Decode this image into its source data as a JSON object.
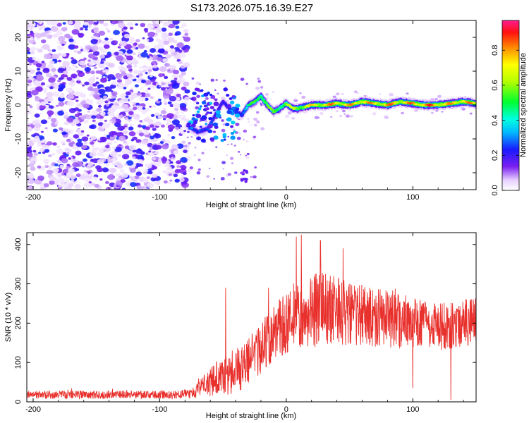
{
  "title": "S173.2026.075.16.39.E27",
  "chart_data": [
    {
      "type": "heatmap",
      "name": "spectrogram",
      "xlabel": "Height of straight line (km)",
      "ylabel": "Frequency (Hz)",
      "xlim": [
        -205,
        150
      ],
      "ylim": [
        -25,
        25
      ],
      "xticks": [
        -200,
        -100,
        0,
        100
      ],
      "yticks": [
        -20,
        -10,
        0,
        10,
        20
      ],
      "colorbar": {
        "label": "Normalized spectral amplitude",
        "range": [
          0,
          0.97
        ],
        "ticks": [
          "0.0",
          "0.2",
          "0.4",
          "0.6",
          "0.8"
        ],
        "tick_values": [
          0.0,
          0.2,
          0.4,
          0.6,
          0.8
        ]
      },
      "noise_region_x": [
        -205,
        -78
      ],
      "ridge": {
        "x": [
          -78,
          -70,
          -62,
          -56,
          -50,
          -45,
          -40,
          -35,
          -30,
          -25,
          -20,
          -15,
          -10,
          -5,
          0,
          5,
          10,
          20,
          30,
          40,
          50,
          60,
          70,
          80,
          90,
          100,
          110,
          120,
          130,
          140,
          150
        ],
        "freq": [
          -6,
          -8,
          -7,
          -3,
          1,
          -1,
          -2,
          -3,
          0,
          1,
          2.5,
          0,
          -2,
          -1,
          0.5,
          -1,
          -1,
          0,
          0,
          0.5,
          0,
          1,
          0.5,
          0,
          1,
          0.5,
          0,
          0,
          0.5,
          1,
          0.5
        ],
        "amplitude": [
          0.2,
          0.3,
          0.3,
          0.25,
          0.3,
          0.25,
          0.3,
          0.35,
          0.5,
          0.6,
          0.7,
          0.65,
          0.6,
          0.65,
          0.7,
          0.7,
          0.75,
          0.8,
          0.85,
          0.9,
          0.85,
          0.9,
          0.85,
          0.9,
          0.85,
          0.9,
          0.95,
          0.9,
          0.85,
          0.9,
          0.85
        ]
      }
    },
    {
      "type": "line",
      "name": "snr",
      "xlabel": "Height of straight line (km)",
      "ylabel": "SNR (10 * v/v)",
      "xlim": [
        -205,
        150
      ],
      "ylim": [
        0,
        430
      ],
      "xticks": [
        -200,
        -100,
        0,
        100
      ],
      "yticks": [
        0,
        100,
        200,
        300,
        400
      ],
      "color": "#e8302c",
      "envelope": {
        "x": [
          -205,
          -150,
          -100,
          -75,
          -65,
          -55,
          -45,
          -35,
          -25,
          -15,
          -5,
          5,
          15,
          25,
          35,
          50,
          70,
          90,
          100,
          110,
          120,
          130,
          140,
          150
        ],
        "baseline": [
          18,
          18,
          18,
          20,
          40,
          60,
          70,
          90,
          120,
          160,
          190,
          215,
          225,
          235,
          235,
          225,
          215,
          205,
          200,
          195,
          190,
          195,
          200,
          205
        ],
        "spread": [
          10,
          10,
          10,
          12,
          30,
          45,
          55,
          60,
          65,
          70,
          75,
          85,
          95,
          95,
          90,
          80,
          75,
          70,
          65,
          60,
          60,
          60,
          60,
          60
        ]
      },
      "spikes": [
        {
          "x": -48,
          "y": 290
        },
        {
          "x": -14,
          "y": 290
        },
        {
          "x": 8,
          "y": 420
        },
        {
          "x": 12,
          "y": 425
        },
        {
          "x": 27,
          "y": 410
        },
        {
          "x": 45,
          "y": 390
        },
        {
          "x": 130,
          "y": 5
        },
        {
          "x": 100,
          "y": 35
        }
      ]
    }
  ]
}
